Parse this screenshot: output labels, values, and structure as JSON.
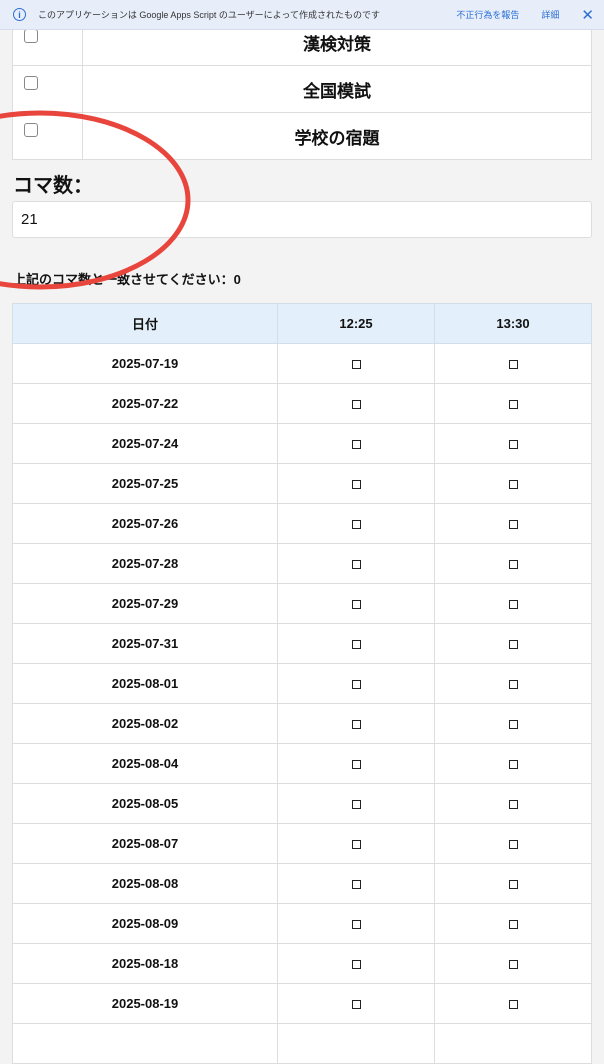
{
  "banner": {
    "message": "このアプリケーションは Google Apps Script のユーザーによって作成されたものです",
    "report": "不正行為を報告",
    "details": "詳細",
    "close": "✕",
    "info": "i"
  },
  "subjects": [
    {
      "name": "漢検対策",
      "checked": false
    },
    {
      "name": "全国模試",
      "checked": false
    },
    {
      "name": "学校の宿題",
      "checked": false
    }
  ],
  "koma": {
    "label": "コマ数：",
    "value": "21"
  },
  "note": "上記のコマ数と一致させてください：0",
  "table": {
    "headers": [
      "日付",
      "12:25",
      "13:30"
    ],
    "rows": [
      "2025-07-19",
      "2025-07-22",
      "2025-07-24",
      "2025-07-25",
      "2025-07-26",
      "2025-07-28",
      "2025-07-29",
      "2025-07-31",
      "2025-08-01",
      "2025-08-02",
      "2025-08-04",
      "2025-08-05",
      "2025-08-07",
      "2025-08-08",
      "2025-08-09",
      "2025-08-18",
      "2025-08-19",
      ""
    ]
  },
  "annotation": {
    "color": "#e8453c"
  }
}
